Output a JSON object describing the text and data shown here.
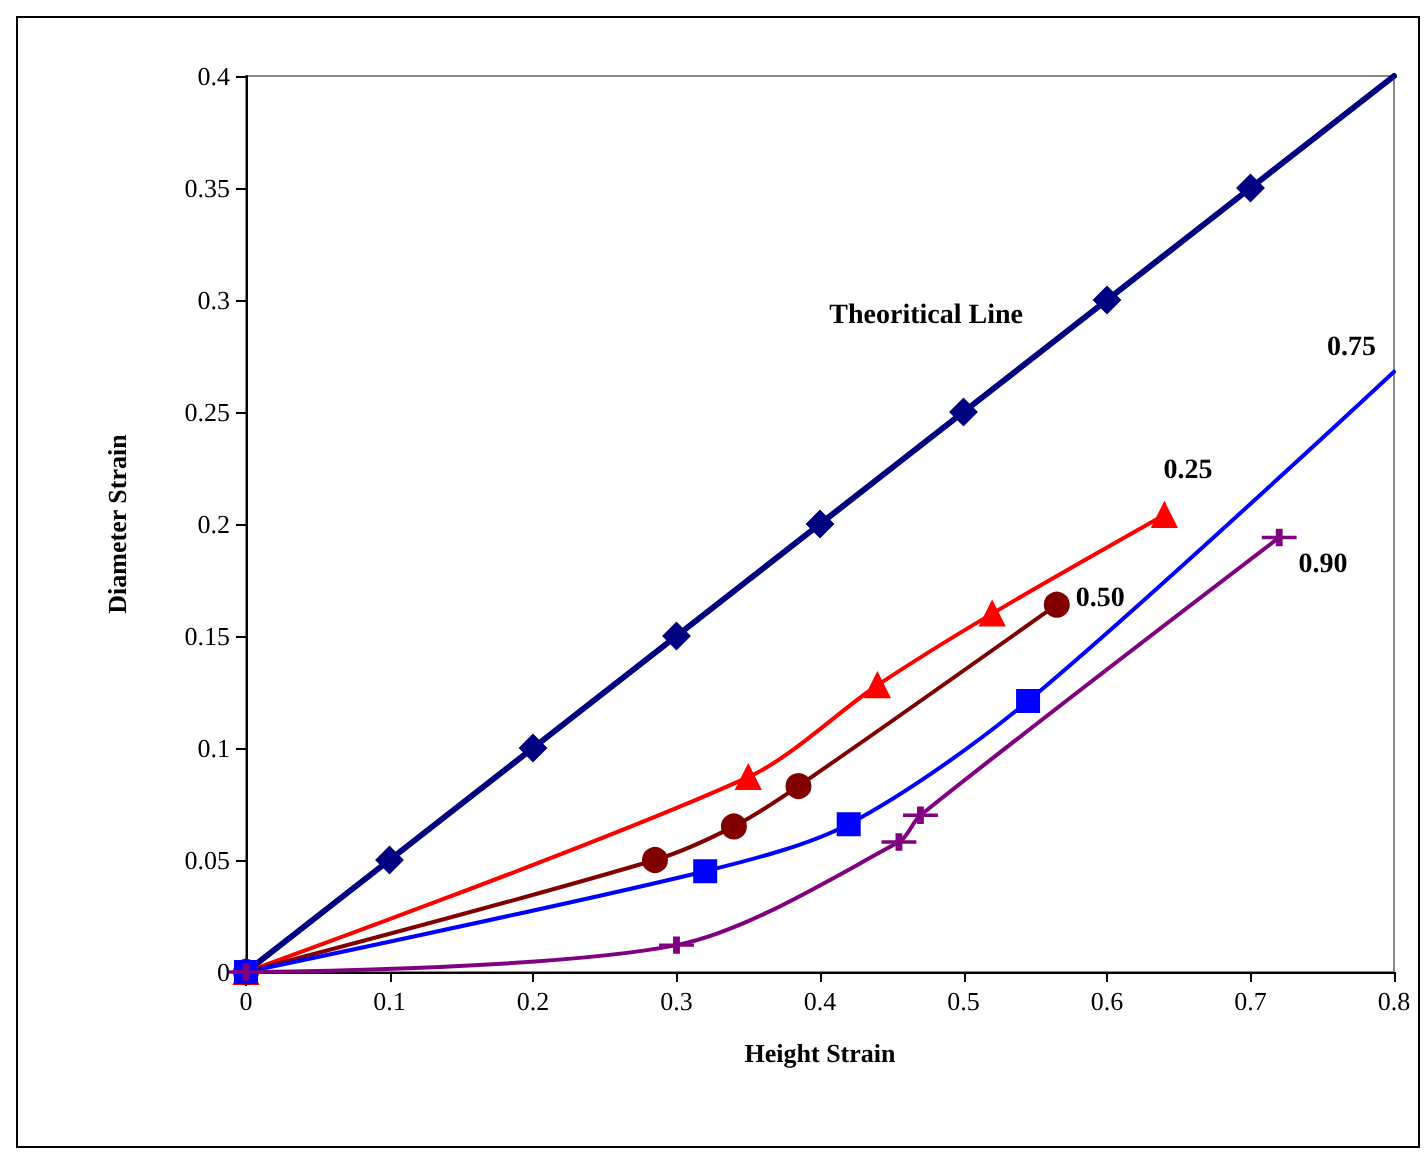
{
  "chart_data": {
    "type": "line",
    "xlabel": "Height Strain",
    "ylabel": "Diameter Strain",
    "xlim": [
      0,
      0.8
    ],
    "xticks": [
      0,
      0.1,
      0.2,
      0.3,
      0.4,
      0.5,
      0.6,
      0.7,
      0.8
    ],
    "ylim": [
      0,
      0.4
    ],
    "yticks": [
      0,
      0.05,
      0.1,
      0.15,
      0.2,
      0.25,
      0.3,
      0.35,
      0.4
    ],
    "grid": false,
    "line_style": "solid",
    "series": [
      {
        "name": "Theoritical Line",
        "color": "#000080",
        "marker": "diamond",
        "x": [
          0,
          0.1,
          0.2,
          0.3,
          0.4,
          0.5,
          0.6,
          0.7,
          0.8
        ],
        "values": [
          0,
          0.05,
          0.1,
          0.15,
          0.2,
          0.25,
          0.3,
          0.35,
          0.4
        ]
      },
      {
        "name": "0.25",
        "color": "#ff0000",
        "marker": "triangle",
        "x": [
          0,
          0.35,
          0.44,
          0.52,
          0.64
        ],
        "values": [
          0,
          0.087,
          0.128,
          0.16,
          0.204
        ]
      },
      {
        "name": "0.50",
        "color": "#800000",
        "marker": "circle",
        "x": [
          0,
          0.285,
          0.34,
          0.385,
          0.565
        ],
        "values": [
          0,
          0.05,
          0.065,
          0.083,
          0.164
        ]
      },
      {
        "name": "0.75",
        "color": "#0000ff",
        "marker": "square",
        "x": [
          0,
          0.32,
          0.42,
          0.545,
          0.8
        ],
        "values": [
          0,
          0.045,
          0.066,
          0.121,
          0.268
        ]
      },
      {
        "name": "0.90",
        "color": "#800080",
        "marker": "cross",
        "x": [
          0,
          0.3,
          0.455,
          0.47,
          0.72
        ],
        "values": [
          0,
          0.012,
          0.058,
          0.07,
          0.194
        ]
      }
    ]
  }
}
